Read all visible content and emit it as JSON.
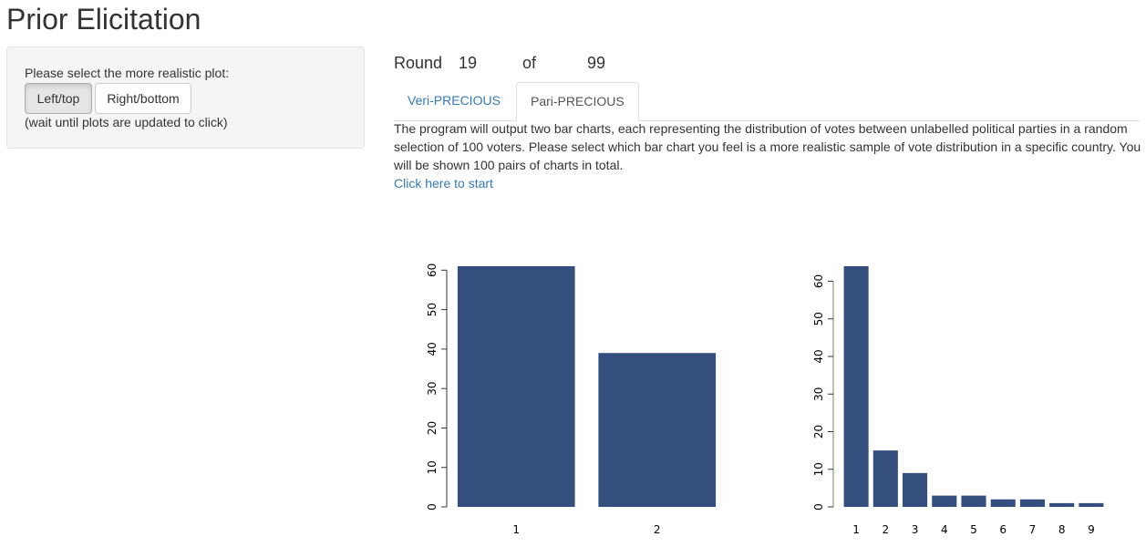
{
  "page_title": "Prior Elicitation",
  "sidebar": {
    "prompt": "Please select the more realistic plot:",
    "left_button": "Left/top",
    "right_button": "Right/bottom",
    "wait_note": "(wait until plots are updated to click)"
  },
  "round": {
    "label": "Round",
    "current": "19",
    "of_label": "of",
    "total": "99"
  },
  "tabs": [
    {
      "label": "Veri-PRECIOUS",
      "active": false
    },
    {
      "label": "Pari-PRECIOUS",
      "active": true
    }
  ],
  "description": "The program will output two bar charts, each representing the distribution of votes between unlabelled political parties in a random selection of 100 voters. Please select which bar chart you feel is a more realistic sample of vote distribution in a specific country. You will be shown 100 pairs of charts in total.",
  "start_link": "Click here to start",
  "colors": {
    "bar": "#344e7e",
    "link": "#337ab7",
    "sidebar_bg": "#f5f5f5"
  },
  "chart_data": [
    {
      "type": "bar",
      "categories": [
        "1",
        "2"
      ],
      "values": [
        61,
        39
      ],
      "ylim": [
        0,
        61
      ],
      "yticks": [
        0,
        10,
        20,
        30,
        40,
        50,
        60
      ],
      "title": "",
      "xlabel": "",
      "ylabel": ""
    },
    {
      "type": "bar",
      "categories": [
        "1",
        "2",
        "3",
        "4",
        "5",
        "6",
        "7",
        "8",
        "9"
      ],
      "values": [
        64,
        15,
        9,
        3,
        3,
        2,
        2,
        1,
        1
      ],
      "ylim": [
        0,
        64
      ],
      "yticks": [
        0,
        10,
        20,
        30,
        40,
        50,
        60
      ],
      "title": "",
      "xlabel": "",
      "ylabel": ""
    }
  ]
}
